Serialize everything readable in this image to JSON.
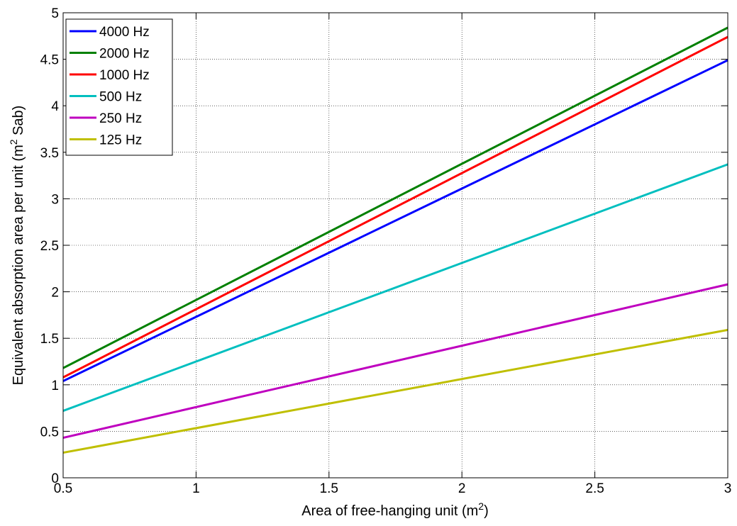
{
  "chart_data": {
    "type": "line",
    "title": "",
    "xlabel": "Area of free-hanging unit (m",
    "xlabel_sup": "2",
    "xlabel_end": ")",
    "ylabel": "Equivalent absorption area per unit (m",
    "ylabel_sup": "2",
    "ylabel_end": " Sab)",
    "xlim": [
      0.5,
      3
    ],
    "ylim": [
      0,
      5
    ],
    "xticks": [
      0.5,
      1,
      1.5,
      2,
      2.5,
      3
    ],
    "xtick_labels": [
      "0.5",
      "1",
      "1.5",
      "2",
      "2.5",
      "3"
    ],
    "yticks": [
      0,
      0.5,
      1,
      1.5,
      2,
      2.5,
      3,
      3.5,
      4,
      4.5,
      5
    ],
    "ytick_labels": [
      "0",
      "0.5",
      "1",
      "1.5",
      "2",
      "2.5",
      "3",
      "3.5",
      "4",
      "4.5",
      "5"
    ],
    "grid": true,
    "legend_position": "top-left",
    "series": [
      {
        "name": "4000 Hz",
        "color": "#0000ff",
        "x": [
          0.5,
          3
        ],
        "y": [
          1.04,
          4.49
        ]
      },
      {
        "name": "2000 Hz",
        "color": "#008000",
        "x": [
          0.5,
          3
        ],
        "y": [
          1.18,
          4.84
        ]
      },
      {
        "name": "1000 Hz",
        "color": "#ff0000",
        "x": [
          0.5,
          3
        ],
        "y": [
          1.08,
          4.74
        ]
      },
      {
        "name": "500 Hz",
        "color": "#00bfbf",
        "x": [
          0.5,
          3
        ],
        "y": [
          0.72,
          3.37
        ]
      },
      {
        "name": "250 Hz",
        "color": "#bf00bf",
        "x": [
          0.5,
          3
        ],
        "y": [
          0.43,
          2.08
        ]
      },
      {
        "name": "125 Hz",
        "color": "#bfbf00",
        "x": [
          0.5,
          3
        ],
        "y": [
          0.27,
          1.59
        ]
      }
    ]
  }
}
